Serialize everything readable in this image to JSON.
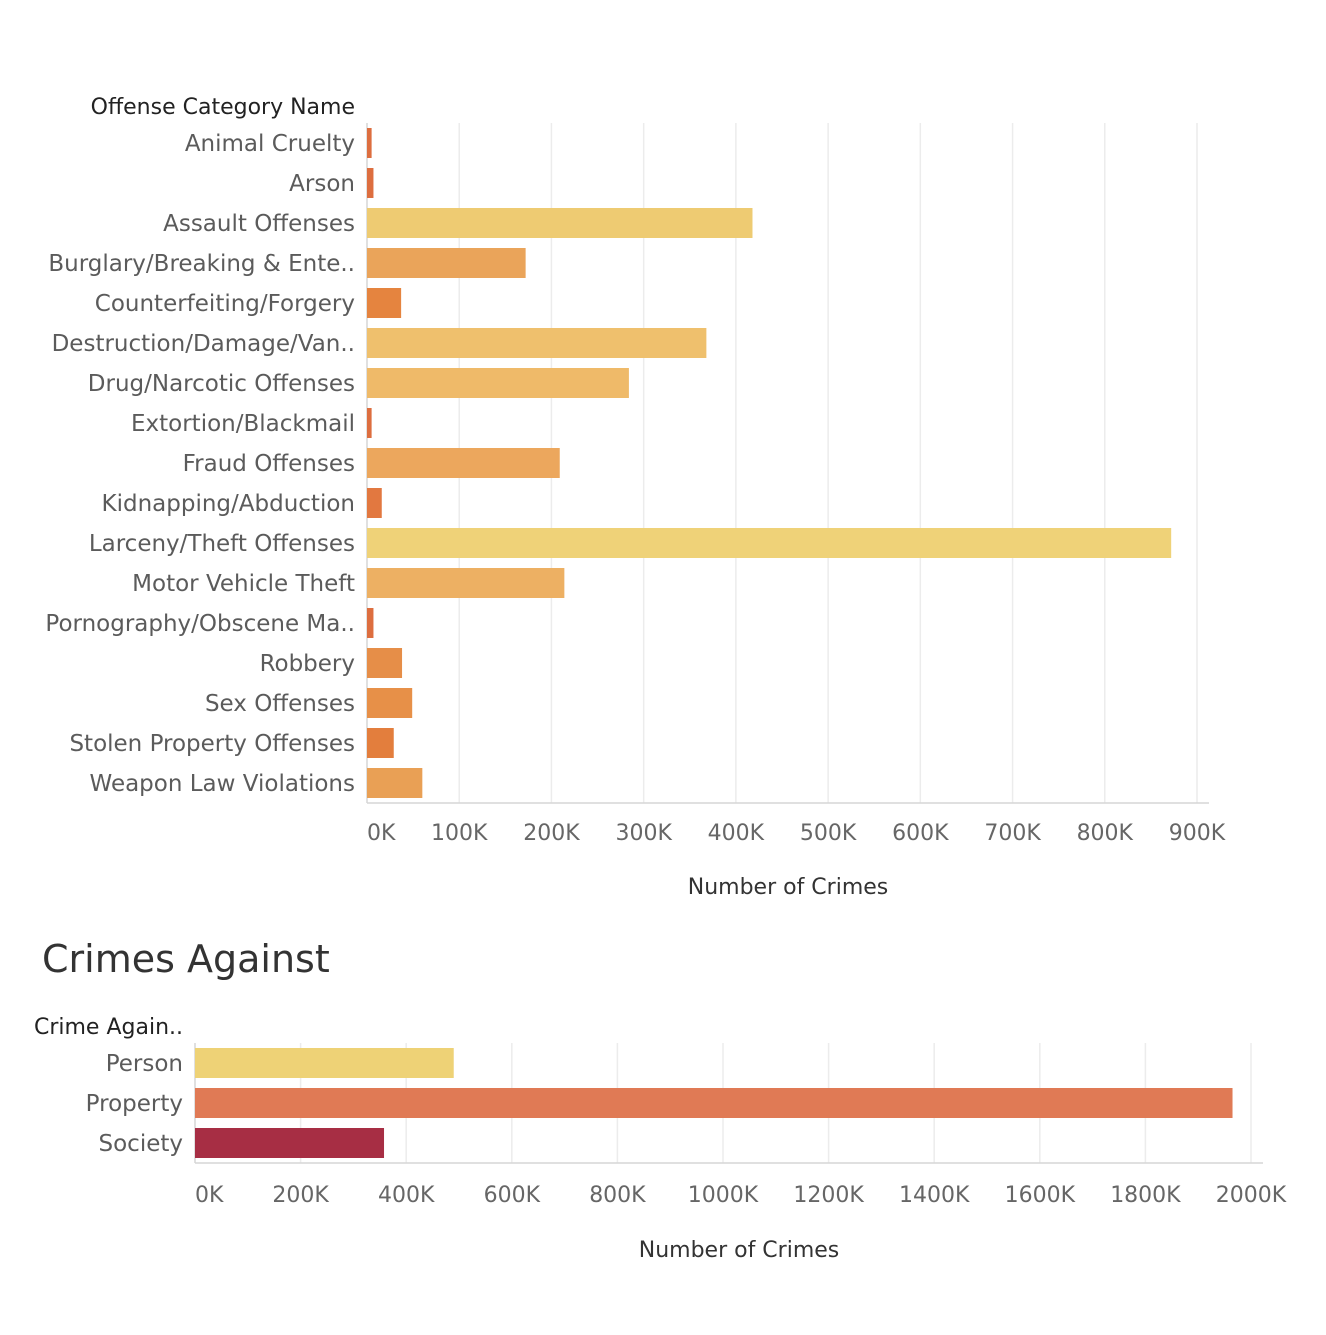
{
  "chart_data": [
    {
      "type": "bar",
      "orientation": "horizontal",
      "row_header": "Offense Category Name",
      "xlabel": "Number of Crimes",
      "xlim": [
        0,
        900000
      ],
      "ticks": [
        "0K",
        "100K",
        "200K",
        "300K",
        "400K",
        "500K",
        "600K",
        "700K",
        "800K",
        "900K"
      ],
      "grid": true,
      "categories": [
        "Animal Cruelty",
        "Arson",
        "Assault Offenses",
        "Burglary/Breaking & Ente..",
        "Counterfeiting/Forgery",
        "Destruction/Damage/Van..",
        "Drug/Narcotic Offenses",
        "Extortion/Blackmail",
        "Fraud Offenses",
        "Kidnapping/Abduction",
        "Larceny/Theft Offenses",
        "Motor Vehicle Theft",
        "Pornography/Obscene Ma..",
        "Robbery",
        "Sex Offenses",
        "Stolen Property Offenses",
        "Weapon Law Violations"
      ],
      "values": [
        5000,
        7000,
        418000,
        172000,
        37000,
        368000,
        284000,
        5000,
        209000,
        16000,
        872000,
        214000,
        7000,
        38000,
        49000,
        29000,
        60000
      ],
      "colors": [
        "#dd6e3f",
        "#dd6e3f",
        "#eecb72",
        "#eaa45a",
        "#e5843f",
        "#efc06d",
        "#efba69",
        "#dd6e3f",
        "#eca75d",
        "#e27840",
        "#efd278",
        "#edb063",
        "#dd6e3f",
        "#e68e48",
        "#e79048",
        "#e37e3d",
        "#e9a055"
      ]
    },
    {
      "type": "bar",
      "orientation": "horizontal",
      "title": "Crimes Against",
      "row_header": "Crime Again..",
      "xlabel": "Number of Crimes",
      "xlim": [
        0,
        2000000
      ],
      "ticks": [
        "0K",
        "200K",
        "400K",
        "600K",
        "800K",
        "1000K",
        "1200K",
        "1400K",
        "1600K",
        "1800K",
        "2000K"
      ],
      "grid": true,
      "categories": [
        "Person",
        "Property",
        "Society"
      ],
      "values": [
        490000,
        1965000,
        358000
      ],
      "colors": [
        "#eed276",
        "#e07a55",
        "#a72e44"
      ]
    }
  ]
}
